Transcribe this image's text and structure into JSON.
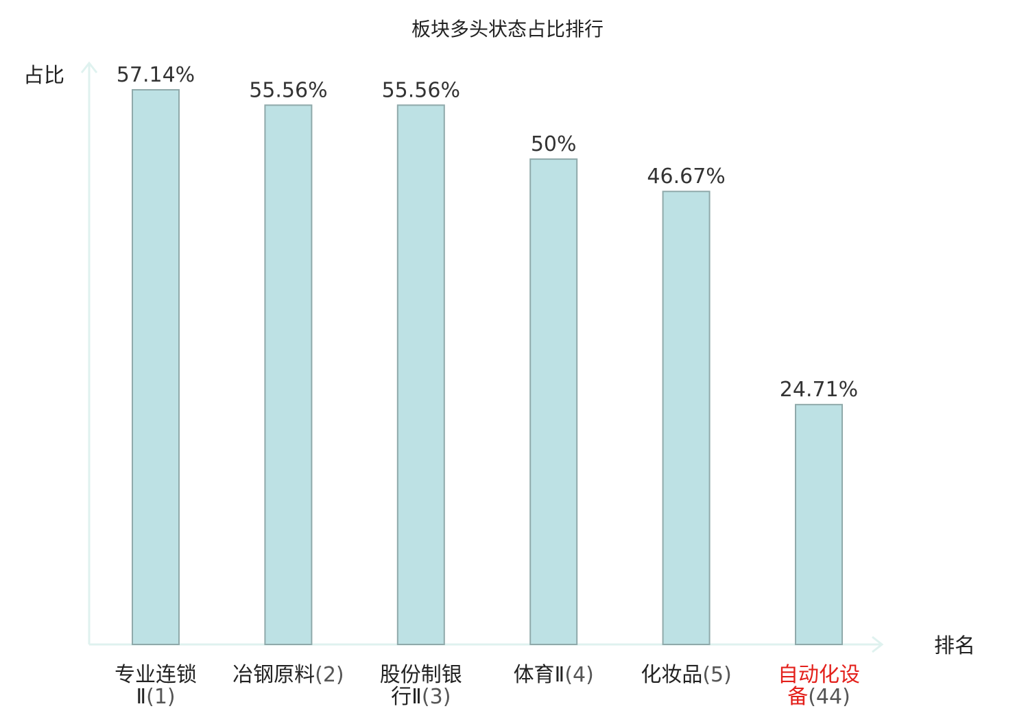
{
  "chart_data": {
    "type": "bar",
    "title": "板块多头状态占比排行",
    "ylabel": "占比",
    "xlabel": "排名",
    "ylim": [
      0,
      60
    ],
    "grid": false,
    "legend": "none",
    "categories": [
      {
        "lines": [
          "专业连锁",
          "Ⅱ"
        ],
        "rank": "(1)",
        "highlight": false
      },
      {
        "lines": [
          "冶钢原料"
        ],
        "rank": "(2)",
        "highlight": false
      },
      {
        "lines": [
          "股份制银",
          "行Ⅱ"
        ],
        "rank": "(3)",
        "highlight": false
      },
      {
        "lines": [
          "体育Ⅱ"
        ],
        "rank": "(4)",
        "highlight": false
      },
      {
        "lines": [
          "化妆品"
        ],
        "rank": "(5)",
        "highlight": false
      },
      {
        "lines": [
          "自动化设",
          "备"
        ],
        "rank": "(44)",
        "highlight": true
      }
    ],
    "values": [
      57.14,
      55.56,
      55.56,
      50,
      46.67,
      24.71
    ],
    "value_labels": [
      "57.14%",
      "55.56%",
      "55.56%",
      "50%",
      "46.67%",
      "24.71%"
    ]
  },
  "colors": {
    "bar_fill": "#bde1e4",
    "bar_stroke": "#8fa9aa",
    "axis": "#dff2ef",
    "highlight": "#e3201b",
    "text": "#222222"
  }
}
